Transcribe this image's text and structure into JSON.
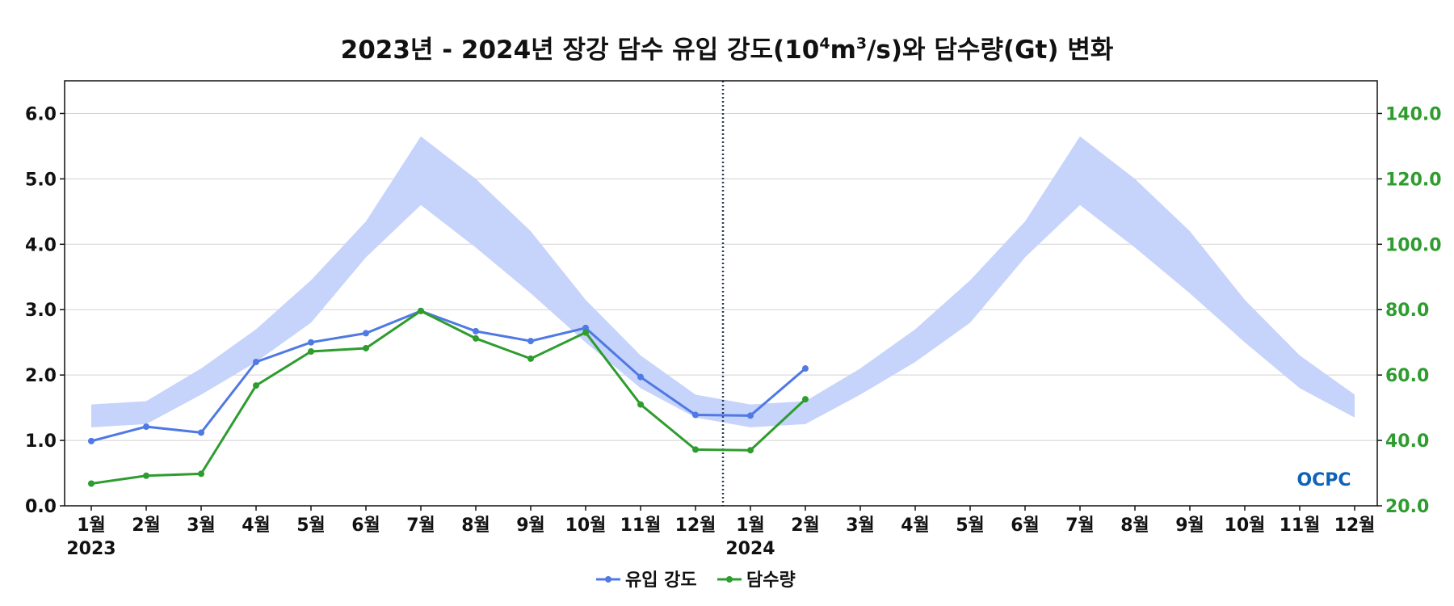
{
  "chart_data": {
    "type": "line",
    "title": {
      "part1": "2023년 - 2024년 장강 담수 유입 강도(10",
      "sup1": "4",
      "part2": "m",
      "sup2": "3",
      "part3": "/s)와 담수량(Gt) 변화"
    },
    "x_tick_labels": [
      "1월",
      "2월",
      "3월",
      "4월",
      "5월",
      "6월",
      "7월",
      "8월",
      "9월",
      "10월",
      "11월",
      "12월",
      "1월",
      "2월",
      "3월",
      "4월",
      "5월",
      "6월",
      "7월",
      "8월",
      "9월",
      "10월",
      "11월",
      "12월"
    ],
    "year_labels": [
      {
        "label": "2023",
        "month_index": 0
      },
      {
        "label": "2024",
        "month_index": 12
      }
    ],
    "year_divider_between": [
      11,
      12
    ],
    "y_left": {
      "range": [
        0,
        6.5
      ],
      "ticks": [
        0,
        1,
        2,
        3,
        4,
        5,
        6
      ],
      "tick_labels": [
        "0.0",
        "1.0",
        "2.0",
        "3.0",
        "4.0",
        "5.0",
        "6.0"
      ]
    },
    "y_right": {
      "range": [
        20,
        150
      ],
      "ticks": [
        20,
        40,
        60,
        80,
        100,
        120,
        140
      ],
      "tick_labels": [
        "20.0",
        "40.0",
        "60.0",
        "80.0",
        "100.0",
        "120.0",
        "140.0"
      ]
    },
    "climatology_band": {
      "axis": "left",
      "lower": [
        1.2,
        1.25,
        1.7,
        2.2,
        2.8,
        3.8,
        4.6,
        3.95,
        3.25,
        2.5,
        1.8,
        1.35,
        1.2,
        1.25,
        1.7,
        2.2,
        2.8,
        3.8,
        4.6,
        3.95,
        3.25,
        2.5,
        1.8,
        1.35
      ],
      "upper": [
        1.55,
        1.6,
        2.1,
        2.7,
        3.45,
        4.35,
        5.65,
        5.0,
        4.2,
        3.15,
        2.3,
        1.7,
        1.55,
        1.6,
        2.1,
        2.7,
        3.45,
        4.35,
        5.65,
        5.0,
        4.2,
        3.15,
        2.3,
        1.7
      ],
      "color": "#c6d3fb"
    },
    "series": [
      {
        "name": "유입 강도",
        "axis": "left",
        "color": "#4f79e3",
        "values": [
          0.99,
          1.21,
          1.12,
          2.2,
          2.5,
          2.64,
          2.98,
          2.67,
          2.52,
          2.72,
          1.97,
          1.39,
          1.38,
          2.1
        ]
      },
      {
        "name": "담수량",
        "axis": "right",
        "color": "#2e9c2e",
        "values": [
          26.8,
          29.2,
          29.8,
          56.8,
          67.2,
          68.2,
          79.6,
          71.2,
          65.0,
          73.0,
          51.0,
          37.2,
          37.0,
          52.6
        ]
      }
    ],
    "legend_placement": "bottom-center",
    "grid": "horizontal"
  },
  "logo": {
    "text": "OCPC",
    "color": "#0e63b8"
  }
}
